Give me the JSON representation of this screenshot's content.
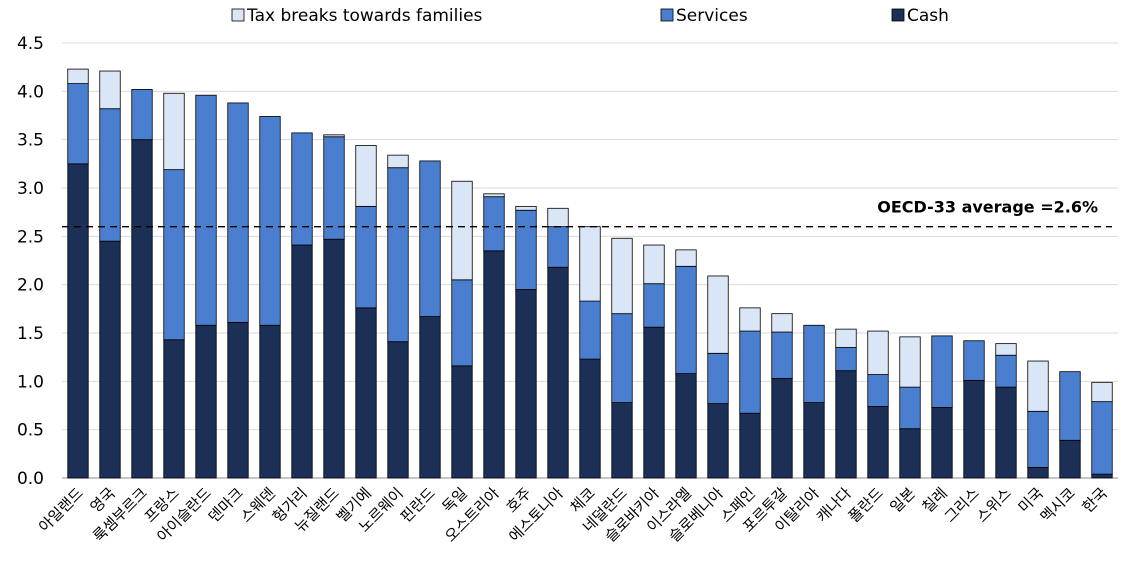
{
  "chart_data": {
    "type": "bar",
    "stacked": true,
    "categories": [
      "아일랜드",
      "영국",
      "룩셈부르크",
      "프랑스",
      "아이슬란드",
      "덴마크",
      "스웨덴",
      "헝가리",
      "뉴질랜드",
      "벨기에",
      "노르웨이",
      "핀란드",
      "독일",
      "오스트리아",
      "호주",
      "에스토니아",
      "체코",
      "네덜란드",
      "슬로바키아",
      "이스라엘",
      "슬로베니아",
      "스페인",
      "포르투갈",
      "이탈리아",
      "캐나다",
      "폴란드",
      "일본",
      "칠레",
      "그리스",
      "스위스",
      "미국",
      "멕시코",
      "한국"
    ],
    "series": [
      {
        "name": "Cash",
        "color": "#1b2f57",
        "values": [
          3.25,
          2.45,
          3.5,
          1.43,
          1.58,
          1.61,
          1.58,
          2.41,
          2.47,
          1.76,
          1.41,
          1.67,
          1.16,
          2.35,
          1.95,
          2.18,
          1.23,
          0.78,
          1.56,
          1.08,
          0.77,
          0.67,
          1.03,
          0.78,
          1.11,
          0.74,
          0.51,
          0.73,
          1.01,
          0.94,
          0.11,
          0.39,
          0.04
        ]
      },
      {
        "name": "Services",
        "color": "#4a7fcf",
        "values": [
          0.83,
          1.37,
          0.52,
          1.76,
          2.38,
          2.27,
          2.16,
          1.16,
          1.06,
          1.05,
          1.8,
          1.61,
          0.89,
          0.56,
          0.82,
          0.42,
          0.6,
          0.92,
          0.45,
          1.11,
          0.52,
          0.85,
          0.48,
          0.8,
          0.24,
          0.33,
          0.43,
          0.74,
          0.41,
          0.33,
          0.58,
          0.71,
          0.75
        ]
      },
      {
        "name": "Tax breaks towards families",
        "color": "#dae5f6",
        "values": [
          0.15,
          0.39,
          0.0,
          0.79,
          0.0,
          0.0,
          0.0,
          0.0,
          0.02,
          0.63,
          0.13,
          0.0,
          1.02,
          0.03,
          0.04,
          0.19,
          0.77,
          0.78,
          0.4,
          0.17,
          0.8,
          0.24,
          0.19,
          0.0,
          0.19,
          0.45,
          0.52,
          0.0,
          0.0,
          0.12,
          0.52,
          0.0,
          0.2
        ]
      }
    ],
    "legend_order": [
      "Tax breaks towards families",
      "Services",
      "Cash"
    ],
    "legend_position": "top",
    "ylim": [
      0,
      4.5
    ],
    "yticks": [
      "0.0",
      "0.5",
      "1.0",
      "1.5",
      "2.0",
      "2.5",
      "3.0",
      "3.5",
      "4.0",
      "4.5"
    ],
    "grid": true,
    "reference_line": {
      "value": 2.6,
      "label": "OECD-33 average =2.6%",
      "style": "dashed"
    },
    "title": "",
    "xlabel": "",
    "ylabel": ""
  }
}
